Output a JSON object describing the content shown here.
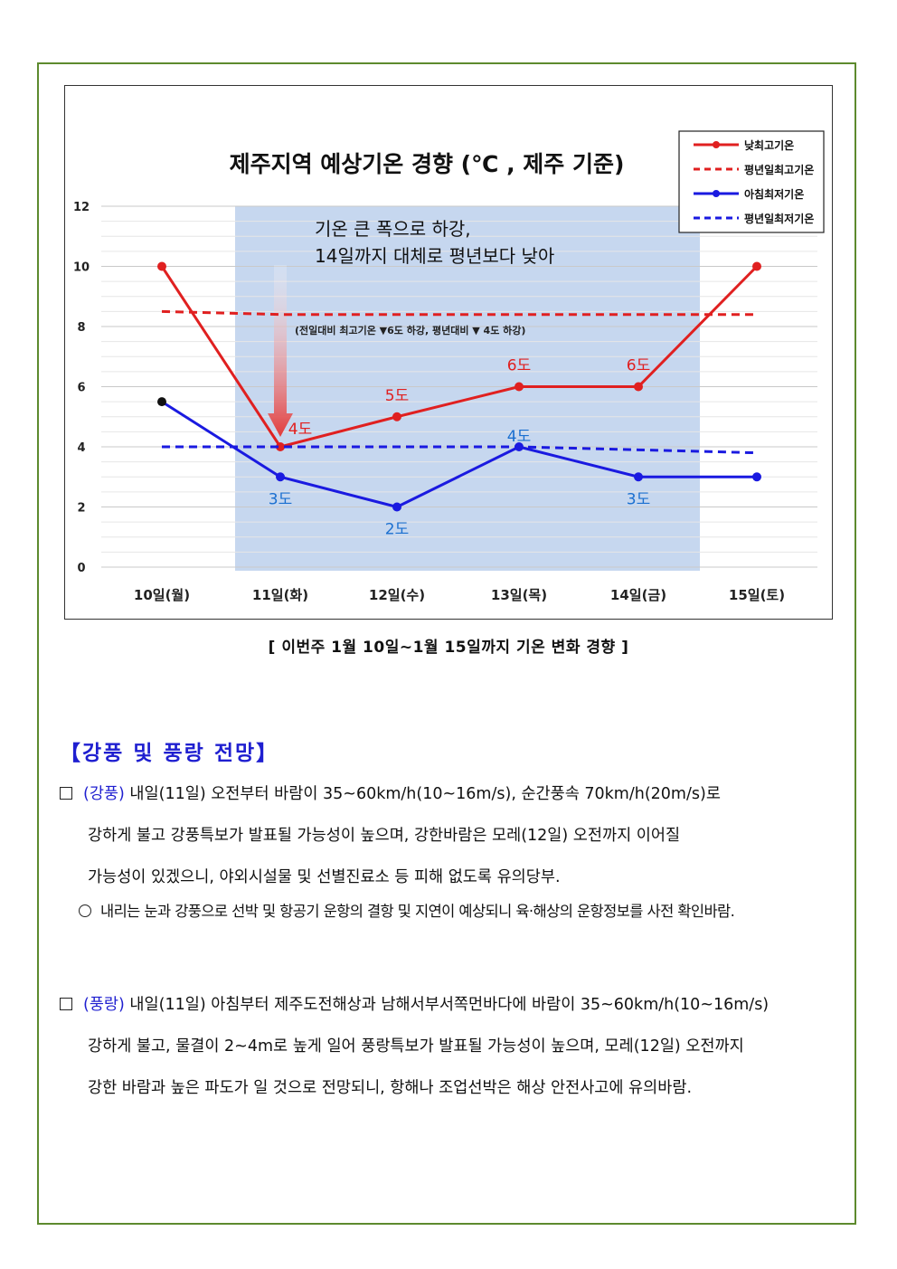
{
  "chart_data": {
    "type": "line",
    "title": "제주지역 예상기온 경향 (℃ , 제주 기준)",
    "categories": [
      "10일(월)",
      "11일(화)",
      "12일(수)",
      "13일(목)",
      "14일(금)",
      "15일(토)"
    ],
    "ylim": [
      0,
      12
    ],
    "yticks": [
      "0",
      "2",
      "4",
      "6",
      "8",
      "10",
      "12"
    ],
    "grid": true,
    "legend_position": "top-right",
    "series": [
      {
        "name": "낮최고기온",
        "values": [
          10,
          4,
          5,
          6,
          6,
          10
        ],
        "color": "#e02020",
        "style": "solid",
        "labels": [
          "",
          "4도",
          "5도",
          "6도",
          "6도",
          ""
        ]
      },
      {
        "name": "평년일최고기온",
        "values": [
          8.5,
          8.4,
          8.4,
          8.4,
          8.4,
          8.4
        ],
        "color": "#e02020",
        "style": "dashed"
      },
      {
        "name": "아침최저기온",
        "values": [
          5.5,
          3,
          2,
          4,
          3,
          3
        ],
        "color": "#1a1ae0",
        "style": "solid",
        "labels": [
          "",
          "3도",
          "2도",
          "4도",
          "3도",
          ""
        ]
      },
      {
        "name": "평년일최저기온",
        "values": [
          4,
          4,
          4,
          4,
          3.9,
          3.8
        ],
        "color": "#1a1ae0",
        "style": "dashed"
      }
    ],
    "highlight": {
      "from": "11일(화)",
      "to": "14일(금)",
      "color": "#c6d7ef"
    },
    "annotation_main": [
      "기온 큰 폭으로 하강,",
      "14일까지 대체로 평년보다 낮아"
    ],
    "annotation_small": "(전일대비 최고기온 ▼6도 하강, 평년대비 ▼ 4도 하강)"
  },
  "caption": "[ 이번주 1월 10일~1월 15일까지 기온 변화 경향 ]",
  "section_title": "【강풍 및 풍랑 전망】",
  "gangpung": {
    "tag": "(강풍)",
    "line1": " 내일(11일) 오전부터 바람이 35~60km/h(10~16m/s), 순간풍속 70km/h(20m/s)로",
    "line2": "강하게 불고 강풍특보가 발표될 가능성이 높으며, 강한바람은 모레(12일) 오전까지 이어질",
    "line3": "가능성이 있겠으니, 야외시설물 및 선별진료소 등 피해 없도록 유의당부.",
    "sub": "내리는 눈과 강풍으로 선박 및 항공기 운항의 결항 및 지연이 예상되니 육·해상의 운항정보를 사전 확인바람."
  },
  "pungrang": {
    "tag": "(풍랑)",
    "line1": " 내일(11일) 아침부터 제주도전해상과 남해서부서쪽먼바다에 바람이 35~60km/h(10~16m/s)",
    "line2": "강하게 불고, 물결이 2~4m로 높게 일어 풍랑특보가 발표될 가능성이 높으며, 모레(12일) 오전까지",
    "line3": "강한 바람과 높은 파도가 일 것으로 전망되니, 항해나 조업선박은 해상 안전사고에 유의바람."
  }
}
